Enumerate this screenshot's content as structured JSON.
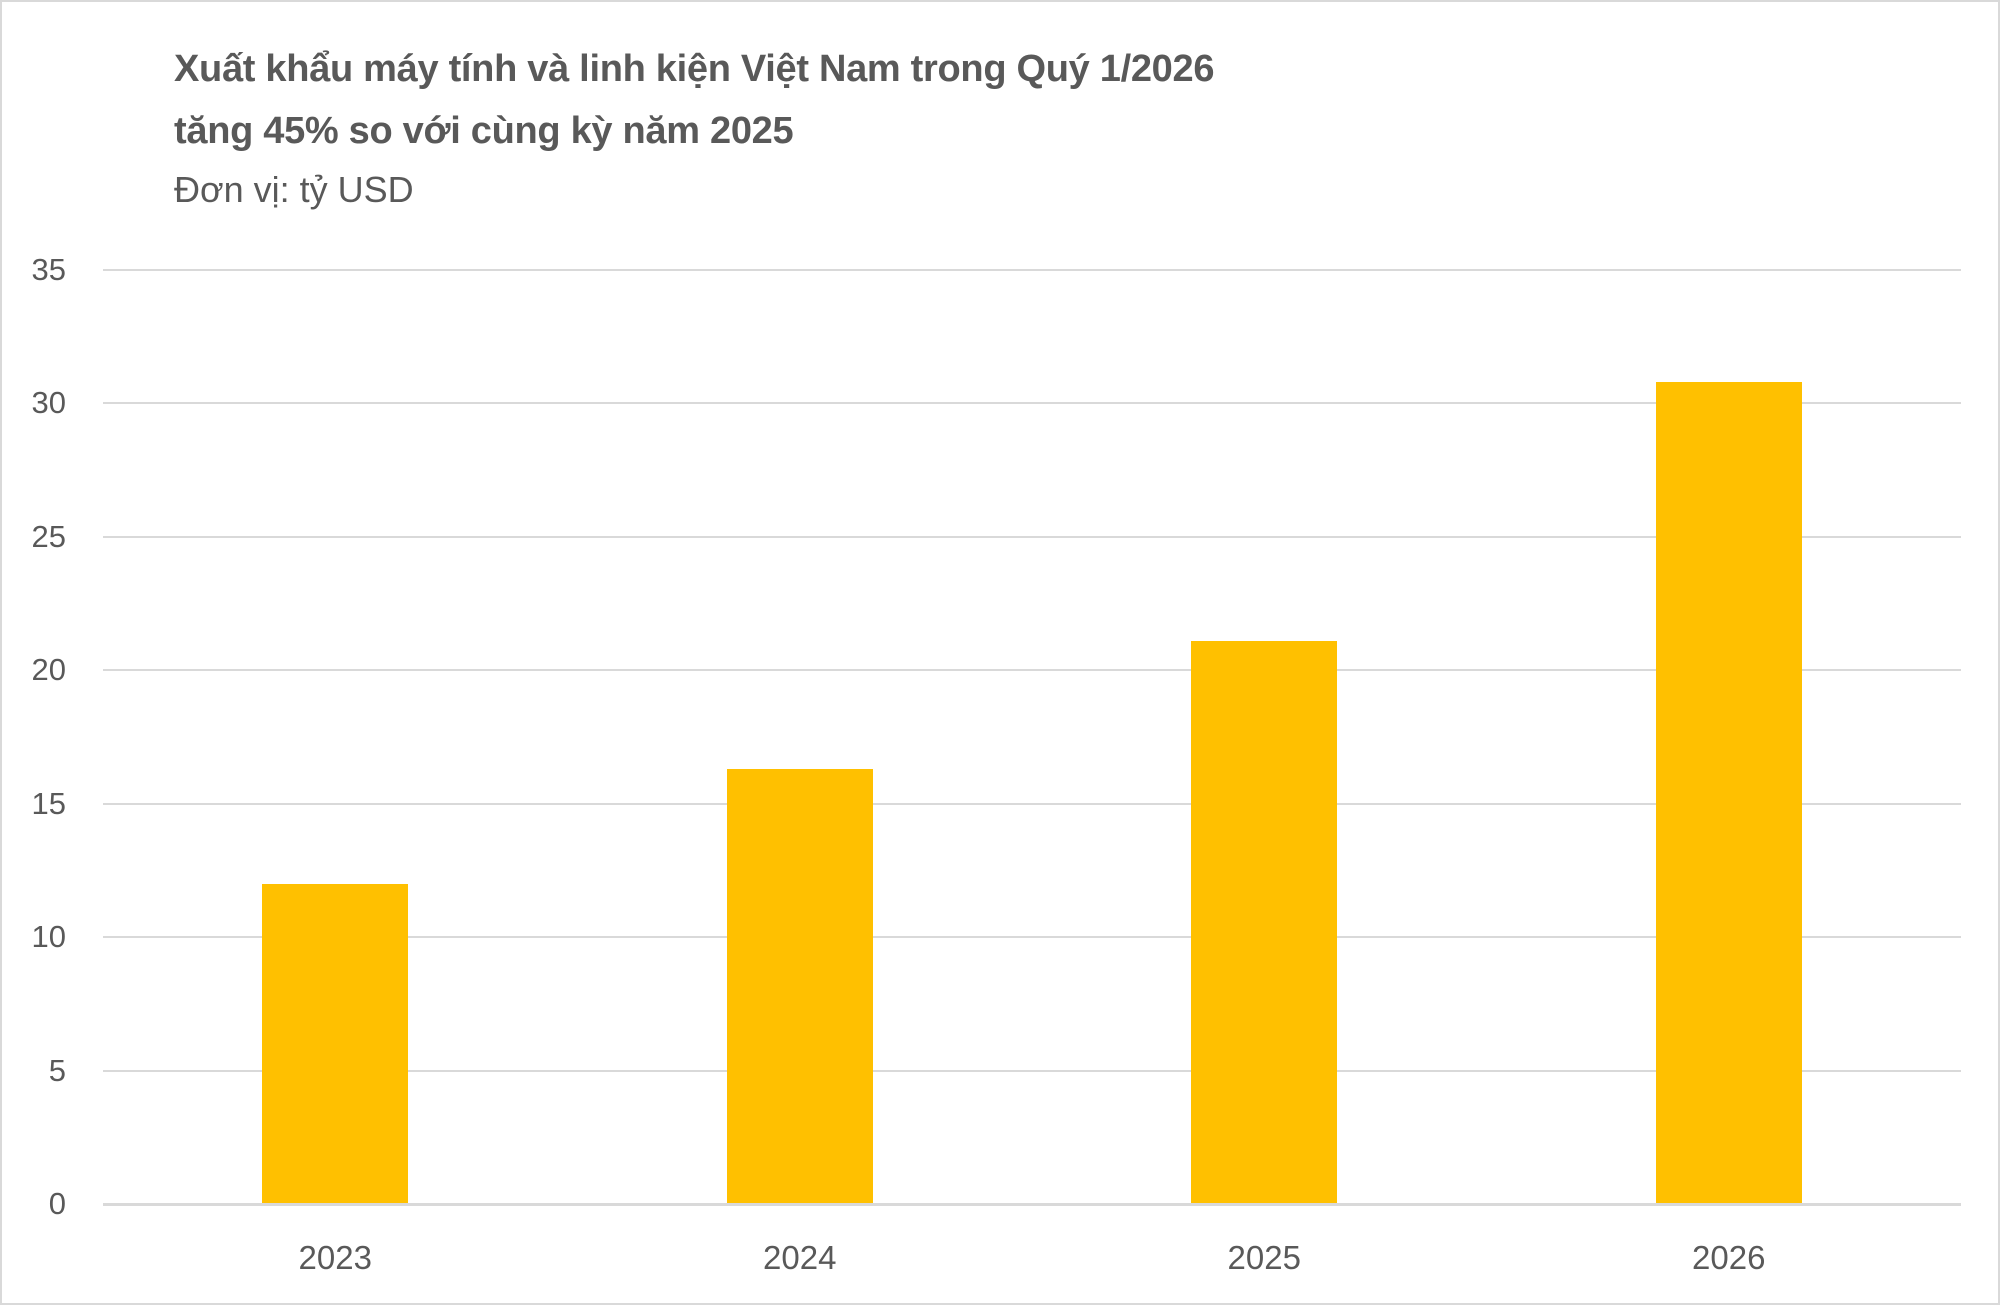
{
  "chart_data": {
    "type": "bar",
    "title": "Xuất khẩu máy tính và linh kiện Việt Nam trong Quý 1/2026 tăng 45% so với cùng kỳ năm 2025",
    "title_lines": [
      "Xuất khẩu máy tính và linh kiện Việt Nam trong Quý 1/2026",
      "tăng 45% so với cùng kỳ năm 2025"
    ],
    "subtitle": "Đơn vị: tỷ USD",
    "categories": [
      "2023",
      "2024",
      "2025",
      "2026"
    ],
    "values": [
      12.0,
      16.3,
      21.1,
      30.8
    ],
    "xlabel": "",
    "ylabel": "",
    "ylim": [
      0,
      35
    ],
    "yticks": [
      "35",
      "30",
      "25",
      "20",
      "15",
      "10",
      "5",
      "0"
    ],
    "grid": true,
    "legend": null,
    "bar_color": "#FFC000"
  },
  "colors": {
    "text": "#595959",
    "grid": "#d9d9d9",
    "bar": "#FFC000",
    "border": "#d9d9d9"
  }
}
